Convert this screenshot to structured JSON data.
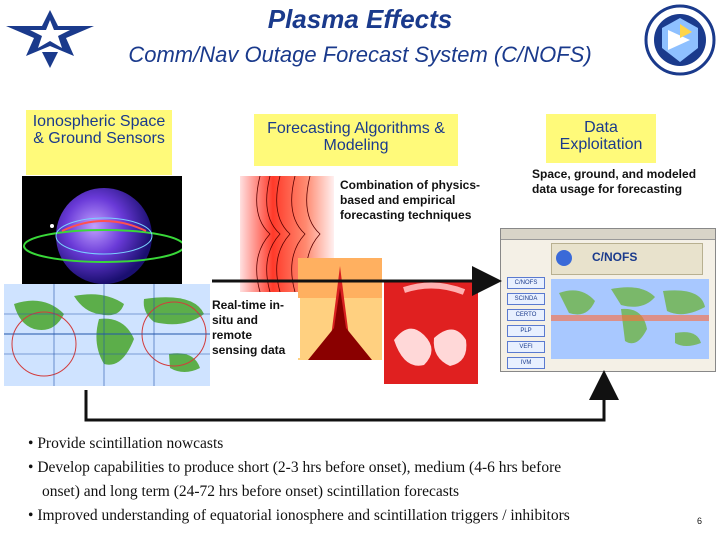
{
  "header": {
    "title": "Plasma Effects",
    "subtitle": "Comm/Nav Outage Forecast System (C/NOFS)"
  },
  "columns": {
    "sensors": "Ionospheric Space & Ground Sensors",
    "algorithms": "Forecasting Algorithms & Modeling",
    "exploitation": "Data Exploitation"
  },
  "captions": {
    "combination": "Combination of physics-based and empirical forecasting techniques",
    "usage": "Space, ground, and modeled data usage for forecasting",
    "realtime": "Real-time in-situ and remote sensing data"
  },
  "bullets": [
    "Provide scintillation nowcasts",
    "Develop capabilities to produce short (2-3 hrs before onset), medium (4-6 hrs before",
    "onset) and long term (24-72 hrs before onset) scintillation forecasts",
    "Improved understanding of equatorial ionosphere and scintillation triggers / inhibitors"
  ],
  "bullet_glyph": "•",
  "web_app": {
    "title": "C/NOFS",
    "menu": [
      "C/NOFS",
      "SCINDA",
      "CERTO",
      "PLP",
      "VEFI",
      "IVM"
    ]
  },
  "page_number": "6",
  "colors": {
    "title": "#1a3a8c",
    "highlight": "#fffa7a",
    "arrow": "#111111"
  }
}
